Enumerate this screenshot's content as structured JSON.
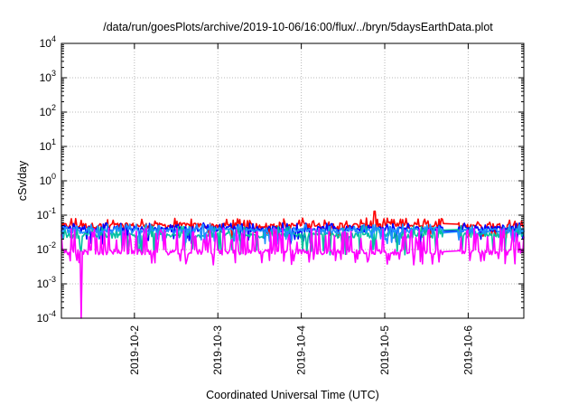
{
  "chart_data": {
    "type": "line",
    "title": "/data/run/goesPlots/archive/2019-10-06/16:00/flux/../bryn/5daysEarthData.plot",
    "xlabel": "Coordinated Universal Time (UTC)",
    "ylabel": "cSv/day",
    "y_scale": "log",
    "ylim": [
      0.0001,
      10000
    ],
    "y_ticks": [
      {
        "base": "10",
        "exp": "-4"
      },
      {
        "base": "10",
        "exp": "-3"
      },
      {
        "base": "10",
        "exp": "-2"
      },
      {
        "base": "10",
        "exp": "-1"
      },
      {
        "base": "10",
        "exp": "0"
      },
      {
        "base": "10",
        "exp": "1"
      },
      {
        "base": "10",
        "exp": "2"
      },
      {
        "base": "10",
        "exp": "3"
      },
      {
        "base": "10",
        "exp": "4"
      }
    ],
    "xlim": [
      "2019-10-01T03:00",
      "2019-10-06T16:00"
    ],
    "x_ticks": [
      "2019-10-2",
      "2019-10-3",
      "2019-10-4",
      "2019-10-5",
      "2019-10-6"
    ],
    "x_tick_dates": [
      "2019-10-02",
      "2019-10-03",
      "2019-10-04",
      "2019-10-05",
      "2019-10-06"
    ],
    "grid": true,
    "legend": "none",
    "series": [
      {
        "color": "#ff0000",
        "base": 0.05,
        "low": 0.03,
        "high": 0.075
      },
      {
        "color": "#0000ff",
        "base": 0.04,
        "low": 0.02,
        "high": 0.055
      },
      {
        "color": "#00c0a0",
        "base": 0.026,
        "low": 0.01,
        "high": 0.045
      },
      {
        "color": "#1e90ff",
        "base": 0.035,
        "low": 0.02,
        "high": 0.05
      },
      {
        "color": "#ff00ff",
        "base": 0.0085,
        "low": 0.005,
        "high": 0.04
      }
    ],
    "features": {
      "drop_to_floor": {
        "series_color": "#ff00ff",
        "from": "2019-10-01T08:30",
        "to": "2019-10-01T09:00",
        "value": 0.0001
      },
      "red_spike": {
        "at": "2019-10-04T21:00",
        "value": 0.13
      },
      "data_gap": {
        "from": "2019-10-05T17:00",
        "to": "2019-10-05T21:00"
      }
    }
  }
}
